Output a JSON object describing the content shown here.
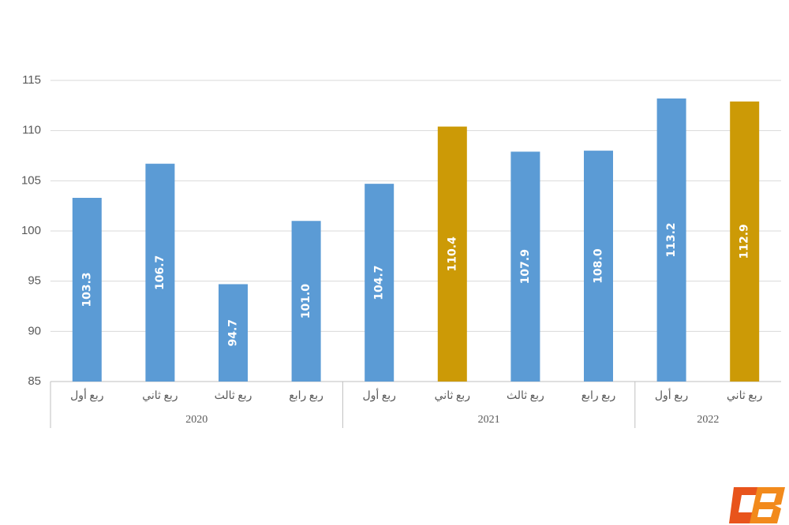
{
  "chart_data": {
    "type": "bar",
    "groups": [
      {
        "name": "2020",
        "categories": [
          "ربع أول",
          "ربع ثاني",
          "ربع ثالث",
          "ربع رابع"
        ],
        "values": [
          103.3,
          106.7,
          94.7,
          101.0
        ],
        "value_labels": [
          "103.3",
          "106.7",
          "94.7",
          "101.0"
        ],
        "colors": [
          "#5b9bd5",
          "#5b9bd5",
          "#5b9bd5",
          "#5b9bd5"
        ]
      },
      {
        "name": "2021",
        "categories": [
          "ربع أول",
          "ربع ثاني",
          "ربع ثالث",
          "ربع رابع"
        ],
        "values": [
          104.7,
          110.4,
          107.9,
          108.0
        ],
        "value_labels": [
          "104.7",
          "110.4",
          "107.9",
          "108.0"
        ],
        "colors": [
          "#5b9bd5",
          "#cc9a06",
          "#5b9bd5",
          "#5b9bd5"
        ]
      },
      {
        "name": "2022",
        "categories": [
          "ربع أول",
          "ربع ثاني"
        ],
        "values": [
          113.2,
          112.9
        ],
        "value_labels": [
          "113.2",
          "112.9"
        ],
        "colors": [
          "#5b9bd5",
          "#cc9a06"
        ]
      }
    ],
    "ylim": [
      85,
      115
    ],
    "yticks": [
      85,
      90,
      95,
      100,
      105,
      110,
      115
    ],
    "grid": true
  }
}
